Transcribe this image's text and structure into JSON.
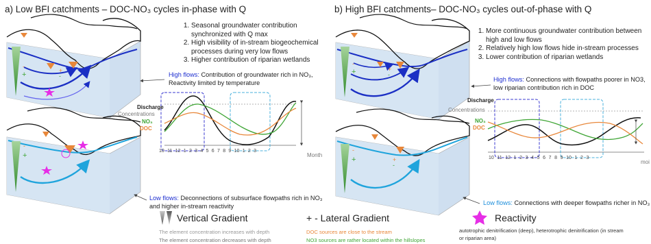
{
  "panel_a": {
    "title": "a) Low BFI catchments – DOC-NO₃ cycles in-phase with Q",
    "list": [
      "Seasonal groundwater contribution synchronized with Q max",
      "High visibility of in-stream biogeochemical processes during very low flows",
      "Higher contribution of riparian wetlands"
    ],
    "high_flows_label": "High flows:",
    "high_flows_text": "Contribution of groundwater rich in NO₃, Reactivity limited by temperature",
    "low_flows_label": "Low flows:",
    "low_flows_text": "Deconnections of subsurface flowpaths rich in NO₃ and higher in-stream reactivity",
    "discharge": "Discharge",
    "concentrations": "Concentrations",
    "no3": "NO₃",
    "doc": "DOC",
    "month_label": "Month",
    "months": [
      "10",
      "11",
      "12",
      "1",
      "2",
      "3",
      "4",
      "5",
      "6",
      "7",
      "8",
      "9",
      "10",
      "1",
      "2",
      "3"
    ]
  },
  "panel_b": {
    "title": "b) High BFI catchments– DOC-NO₃ cycles out-of-phase with Q",
    "list": [
      "More continuous groundwater contribution between high and low flows",
      "Relatively high low flows hide in-stream processes",
      "Lower contribution of riparian wetlands"
    ],
    "high_flows_label": "High flows:",
    "high_flows_text": "Connections with flowpaths poorer in NO3, low riparian contribution rich in DOC",
    "low_flows_label": "Low flows:",
    "low_flows_text": "Connections with deeper flowpaths richer in NO₃",
    "discharge": "Discharge",
    "concentrations": "Concentrations",
    "no3": "NO₃",
    "doc": "DOC",
    "month_label": "moi",
    "months": [
      "10",
      "11",
      "12",
      "1",
      "2",
      "3",
      "4",
      "5",
      "6",
      "7",
      "8",
      "9",
      "10",
      "1",
      "2",
      "3"
    ]
  },
  "legend": {
    "vertical": {
      "title": "Vertical Gradient",
      "line1": "The element concentration increases with depth",
      "line2": "The element concentration decreases with depth"
    },
    "lateral": {
      "title": "+ - Lateral Gradient",
      "line1": "DOC sources are  close to the stream",
      "line2": "NO3 sources are rather located within the hillslopes"
    },
    "reactivity": {
      "title": "Reactivity",
      "line1": "autotrophic denitrification (deep), heterotrophic denitrification (in stream or riparian area)"
    }
  },
  "colors": {
    "no3": "#3fa535",
    "doc": "#e8873a",
    "discharge": "#111111",
    "groundwater_dark": "#1b2fc4",
    "groundwater_light": "#1fa4dc",
    "reactivity": "#e62ee6",
    "gradient_green": "#3f9b3a"
  }
}
